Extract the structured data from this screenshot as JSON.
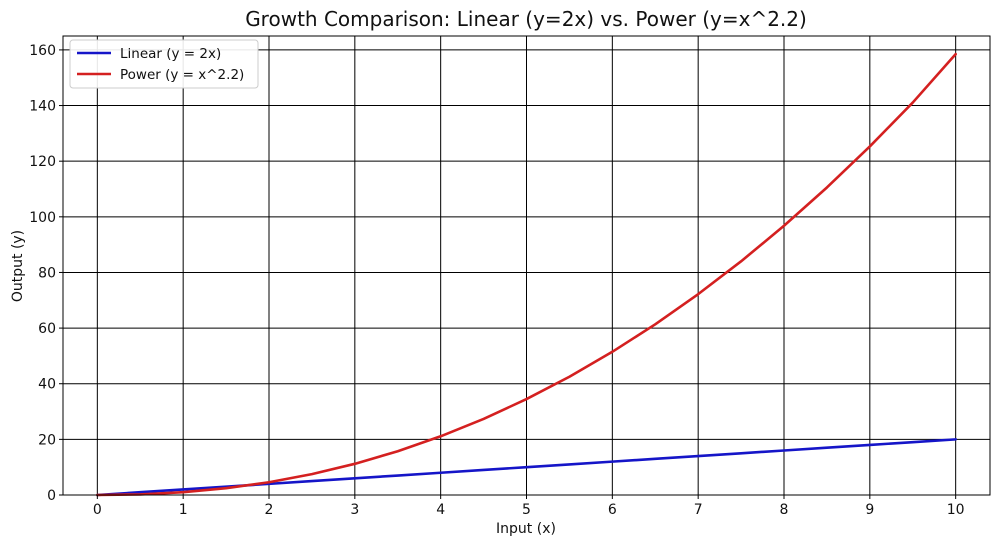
{
  "chart_data": {
    "type": "line",
    "title": "Growth Comparison: Linear (y=2x) vs. Power (y=x^2.2)",
    "xlabel": "Input (x)",
    "ylabel": "Output (y)",
    "xlim": [
      -0.4,
      10.4
    ],
    "ylim": [
      0,
      165
    ],
    "xticks": [
      0,
      1,
      2,
      3,
      4,
      5,
      6,
      7,
      8,
      9,
      10
    ],
    "yticks": [
      0,
      20,
      40,
      60,
      80,
      100,
      120,
      140,
      160
    ],
    "grid": true,
    "legend_position": "top-left",
    "x": [
      0,
      0.5,
      1,
      1.5,
      2,
      2.5,
      3,
      3.5,
      4,
      4.5,
      5,
      5.5,
      6,
      6.5,
      7,
      7.5,
      8,
      8.5,
      9,
      9.5,
      10
    ],
    "series": [
      {
        "name": "Linear (y = 2x)",
        "color": "#1515c8",
        "values": [
          0,
          1,
          2,
          3,
          4,
          5,
          6,
          7,
          8,
          9,
          10,
          11,
          12,
          13,
          14,
          15,
          16,
          17,
          18,
          19,
          20
        ]
      },
      {
        "name": "Power (y = x^2.2)",
        "color": "#d42020",
        "values": [
          0,
          0.22,
          1,
          2.44,
          4.59,
          7.5,
          11.21,
          15.74,
          21.11,
          27.35,
          34.49,
          42.52,
          51.48,
          61.36,
          72.2,
          84.0,
          96.78,
          110.55,
          125.3,
          141.07,
          158.49
        ]
      }
    ]
  }
}
